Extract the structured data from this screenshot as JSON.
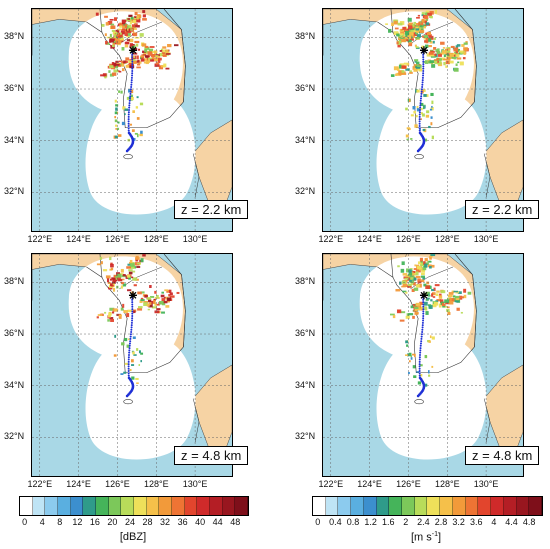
{
  "panels": [
    {
      "id": "tl",
      "variable": "reflectivity",
      "height_label": "z = 2.2 km"
    },
    {
      "id": "tr",
      "variable": "velocity_width",
      "height_label": "z = 2.2 km"
    },
    {
      "id": "bl",
      "variable": "reflectivity",
      "height_label": "z = 4.8 km"
    },
    {
      "id": "br",
      "variable": "velocity_width",
      "height_label": "z = 4.8 km"
    }
  ],
  "lat_labels": [
    "38°N",
    "36°N",
    "34°N",
    "32°N"
  ],
  "lon_labels": [
    "122°E",
    "124°E",
    "126°E",
    "128°E",
    "130°E"
  ],
  "colorbar_left": {
    "ticks": [
      "0",
      "4",
      "8",
      "12",
      "16",
      "20",
      "24",
      "28",
      "32",
      "36",
      "40",
      "44",
      "48"
    ],
    "unit": "[dBZ]",
    "colors": [
      "#ffffff",
      "#bfe4f5",
      "#8ccbee",
      "#5aafe0",
      "#3c8fce",
      "#2f9b8a",
      "#45b45a",
      "#7cc85a",
      "#b8dc5a",
      "#eee05a",
      "#f5c04a",
      "#f29a3a",
      "#ee7434",
      "#e2452d",
      "#cf2a2a",
      "#b41e25",
      "#98161f",
      "#7e0f1a"
    ]
  },
  "colorbar_right": {
    "ticks": [
      "0",
      "0.4",
      "0.8",
      "1.2",
      "1.6",
      "2",
      "2.4",
      "2.8",
      "3.2",
      "3.6",
      "4",
      "4.4",
      "4.8"
    ],
    "unit_base": "[m s",
    "unit_exp": "-1",
    "unit_end": "]",
    "colors": [
      "#ffffff",
      "#bfe4f5",
      "#8ccbee",
      "#5aafe0",
      "#3c8fce",
      "#2f9b8a",
      "#45b45a",
      "#7cc85a",
      "#b8dc5a",
      "#eee05a",
      "#f5c04a",
      "#f29a3a",
      "#ee7434",
      "#e2452d",
      "#cf2a2a",
      "#b41e25",
      "#98161f",
      "#7e0f1a"
    ]
  },
  "colors": {
    "sea": "#a9d8e6",
    "land": "#f6d3a4",
    "coverage": "#ffffff",
    "track": "#1e2fd6"
  }
}
